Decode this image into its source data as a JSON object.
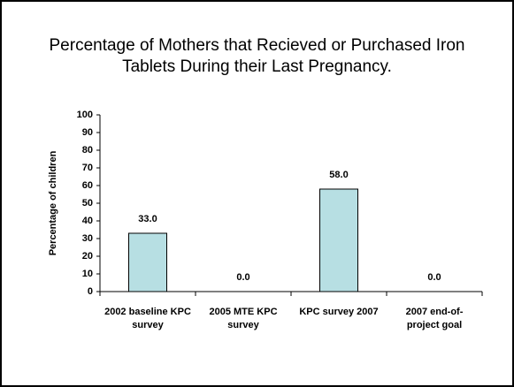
{
  "chart_data": {
    "type": "bar",
    "title": "Percentage of Mothers that Recieved or Purchased Iron Tablets During their Last Pregnancy.",
    "y_label": "Percentage of children",
    "categories": [
      "2002 baseline KPC survey",
      "2005 MTE KPC survey",
      "KPC survey 2007",
      "2007 end-of-project goal"
    ],
    "values": [
      33,
      0,
      58,
      0
    ],
    "value_labels": [
      "33.0",
      "0.0",
      "58.0",
      "0.0"
    ],
    "color": "#b7dfe3",
    "ylim": [
      0,
      100
    ],
    "yticks": [
      0,
      10,
      20,
      30,
      40,
      50,
      60,
      70,
      80,
      90,
      100
    ]
  }
}
